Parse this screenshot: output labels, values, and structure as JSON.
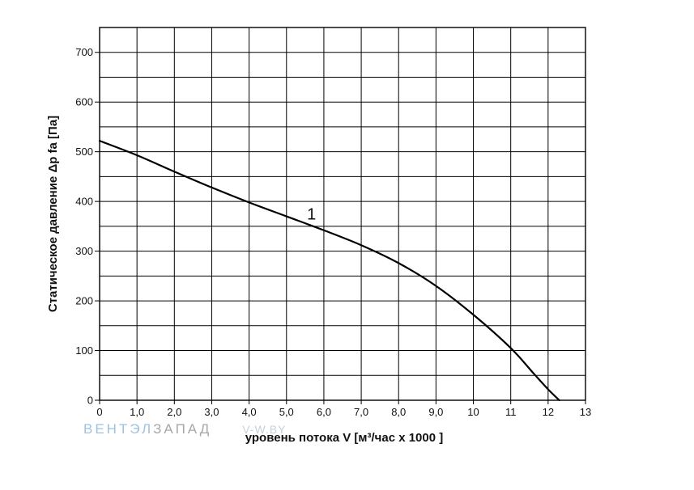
{
  "chart_data": {
    "type": "line",
    "xlabel": "уровень потока  V [м³/час x 1000 ]",
    "ylabel": "Статическое давление  Δp fa [Па]",
    "xlim": [
      0,
      13
    ],
    "ylim": [
      0,
      750
    ],
    "x_ticks": [
      "0",
      "1,0",
      "2,0",
      "3,0",
      "4,0",
      "5,0",
      "6,0",
      "7,0",
      "8,0",
      "9,0",
      "10",
      "11",
      "12",
      "13"
    ],
    "y_ticks": [
      "0",
      "100",
      "200",
      "300",
      "400",
      "500",
      "600",
      "700"
    ],
    "grid": true,
    "series": [
      {
        "name": "1",
        "x": [
          0,
          1,
          2,
          3,
          4,
          5,
          6,
          7,
          8,
          9,
          10,
          11,
          11.6,
          12.0,
          12.3
        ],
        "y": [
          522,
          493,
          460,
          428,
          398,
          370,
          342,
          312,
          276,
          230,
          172,
          105,
          55,
          22,
          0
        ]
      }
    ]
  },
  "watermark": {
    "part1": "ВЕНТЭЛ",
    "part2": "ЗАПАД",
    "part3": "V-W.BY"
  }
}
